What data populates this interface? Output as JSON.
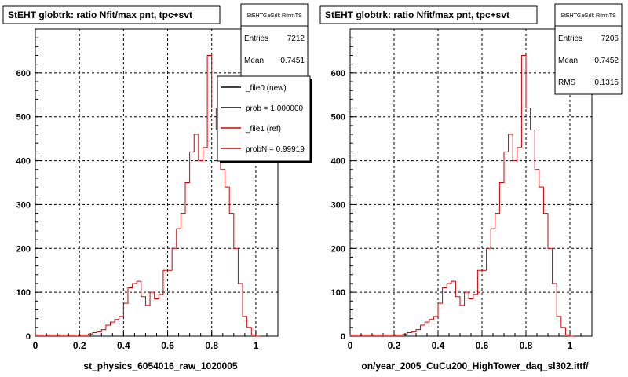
{
  "bottom_left_text": "",
  "chart_data": [
    {
      "type": "histogram",
      "title": "StEHT globtrk: ratio Nfit/max pnt, tpc+svt",
      "xlabel": "st_physics_6054016_raw_1020005",
      "ylabel": "",
      "xlim": [
        0,
        1.1
      ],
      "ylim": [
        0,
        700
      ],
      "x_ticks": [
        "0",
        "0.2",
        "0.4",
        "0.6",
        "0.8",
        "1"
      ],
      "y_ticks": [
        "0",
        "100",
        "200",
        "300",
        "400",
        "500",
        "600"
      ],
      "grid": true,
      "stats_box": {
        "title": "StEHTGaGrlk RmmTS",
        "entries_label": "Entries",
        "entries_value": "7212",
        "mean_label": "Mean",
        "mean_value": "0.7451"
      },
      "legend": {
        "placement": "top-right",
        "entries": [
          {
            "label": "_file0 (new)",
            "color": "#000000"
          },
          {
            "label": "prob = 1.000000",
            "color": "#000000"
          },
          {
            "label": "_file1 (ref)",
            "color": "#cc0000"
          },
          {
            "label": "probN = 0.99919",
            "color": "#cc0000"
          }
        ]
      },
      "bin_width": 0.02,
      "series": [
        {
          "color": "#cc0000",
          "bins_left_edge": [
            0.0,
            0.02,
            0.04,
            0.06,
            0.08,
            0.1,
            0.12,
            0.14,
            0.16,
            0.18,
            0.2,
            0.22,
            0.24,
            0.26,
            0.28,
            0.3,
            0.32,
            0.34,
            0.36,
            0.38,
            0.4,
            0.42,
            0.44,
            0.46,
            0.48,
            0.5,
            0.52,
            0.54,
            0.56,
            0.58,
            0.6,
            0.62,
            0.64,
            0.66,
            0.68,
            0.7,
            0.72,
            0.74,
            0.76,
            0.78,
            0.8,
            0.82,
            0.84,
            0.86,
            0.88,
            0.9,
            0.92,
            0.94,
            0.96,
            0.98,
            1.0
          ],
          "values": [
            3,
            3,
            3,
            3,
            3,
            3,
            3,
            3,
            3,
            3,
            3,
            3,
            5,
            8,
            10,
            15,
            25,
            32,
            38,
            45,
            75,
            110,
            120,
            125,
            90,
            70,
            100,
            85,
            95,
            150,
            150,
            200,
            245,
            280,
            350,
            420,
            460,
            400,
            430,
            640,
            520,
            470,
            380,
            340,
            280,
            200,
            120,
            45,
            20,
            3,
            0
          ]
        }
      ]
    },
    {
      "type": "histogram",
      "title": "StEHT globtrk: ratio Nfit/max pnt, tpc+svt",
      "xlabel": "on/year_2005_CuCu200_HighTower_daq_sl302.ittf/",
      "ylabel": "",
      "xlim": [
        0,
        1.1
      ],
      "ylim": [
        0,
        700
      ],
      "x_ticks": [
        "0",
        "0.2",
        "0.4",
        "0.6",
        "0.8",
        "1"
      ],
      "y_ticks": [
        "0",
        "100",
        "200",
        "300",
        "400",
        "500",
        "600"
      ],
      "grid": true,
      "stats_box": {
        "title": "StEHTGaGrlk RmmTS",
        "entries_label": "Entries",
        "entries_value": "7206",
        "mean_label": "Mean",
        "mean_value": "0.7452",
        "rms_label": "RMS",
        "rms_value": "0.1315"
      },
      "bin_width": 0.02,
      "series": [
        {
          "color": "#cc0000",
          "bins_left_edge": [
            0.0,
            0.02,
            0.04,
            0.06,
            0.08,
            0.1,
            0.12,
            0.14,
            0.16,
            0.18,
            0.2,
            0.22,
            0.24,
            0.26,
            0.28,
            0.3,
            0.32,
            0.34,
            0.36,
            0.38,
            0.4,
            0.42,
            0.44,
            0.46,
            0.48,
            0.5,
            0.52,
            0.54,
            0.56,
            0.58,
            0.6,
            0.62,
            0.64,
            0.66,
            0.68,
            0.7,
            0.72,
            0.74,
            0.76,
            0.78,
            0.8,
            0.82,
            0.84,
            0.86,
            0.88,
            0.9,
            0.92,
            0.94,
            0.96,
            0.98,
            1.0
          ],
          "values": [
            3,
            3,
            3,
            3,
            3,
            3,
            3,
            3,
            3,
            3,
            3,
            3,
            5,
            8,
            10,
            15,
            25,
            32,
            38,
            45,
            75,
            110,
            120,
            125,
            90,
            70,
            100,
            85,
            95,
            150,
            150,
            200,
            245,
            280,
            350,
            420,
            460,
            400,
            430,
            640,
            520,
            470,
            380,
            340,
            280,
            200,
            120,
            45,
            20,
            3,
            0
          ]
        }
      ]
    }
  ]
}
